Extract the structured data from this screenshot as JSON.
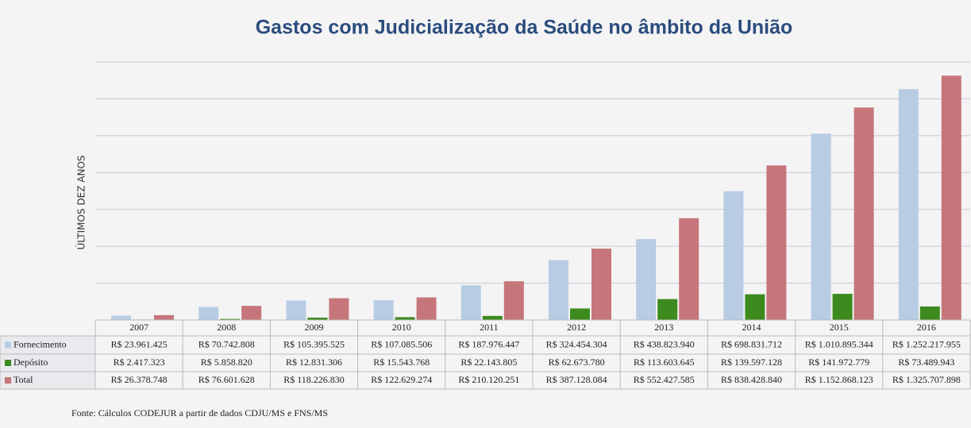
{
  "chart_data": {
    "type": "bar",
    "title": "Gastos com Judicialização da Saúde no âmbito da União",
    "y_label": "ÚLTIMOS DEZ ANOS",
    "source": "Fonte: Cálculos  CODEJUR a partir de dados  CDJU/MS e FNS/MS",
    "categories": [
      "2007",
      "2008",
      "2009",
      "2010",
      "2011",
      "2012",
      "2013",
      "2014",
      "2015",
      "2016"
    ],
    "series": [
      {
        "name": "Fornecimento",
        "color": "#b8cce4",
        "values": [
          23961425,
          70742808,
          105395525,
          107085506,
          187976447,
          324454304,
          438823940,
          698831712,
          1010895344,
          1252217955
        ],
        "value_labels": [
          "R$ 23.961.425",
          "R$ 70.742.808",
          "R$ 105.395.525",
          "R$ 107.085.506",
          "R$ 187.976.447",
          "R$ 324.454.304",
          "R$ 438.823.940",
          "R$ 698.831.712",
          "R$ 1.010.895.344",
          "R$ 1.252.217.955"
        ]
      },
      {
        "name": "Depósito",
        "color": "#3d8b1f",
        "values": [
          2417323,
          5858820,
          12831306,
          15543768,
          22143805,
          62673780,
          113603645,
          139597128,
          141972779,
          73489943
        ],
        "value_labels": [
          "R$ 2.417.323",
          "R$ 5.858.820",
          "R$ 12.831.306",
          "R$ 15.543.768",
          "R$ 22.143.805",
          "R$ 62.673.780",
          "R$ 113.603.645",
          "R$ 139.597.128",
          "R$ 141.972.779",
          "R$ 73.489.943"
        ]
      },
      {
        "name": "Total",
        "color": "#c6767b",
        "values": [
          26378748,
          76601628,
          118226830,
          122629274,
          210120251,
          387128084,
          552427585,
          838428840,
          1152868123,
          1325707898
        ],
        "value_labels": [
          "R$ 26.378.748",
          "R$ 76.601.628",
          "R$ 118.226.830",
          "R$ 122.629.274",
          "R$ 210.120.251",
          "R$ 387.128.084",
          "R$ 552.427.585",
          "R$ 838.428.840",
          "R$ 1.152.868.123",
          "R$ 1.325.707.898"
        ]
      }
    ],
    "ylim": [
      0,
      1400000000
    ],
    "yticks": [
      0,
      200000000,
      400000000,
      600000000,
      800000000,
      1000000000,
      1200000000,
      1400000000
    ],
    "grid": true
  }
}
